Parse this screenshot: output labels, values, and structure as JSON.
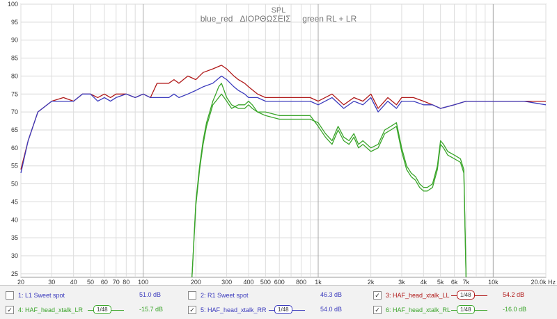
{
  "chart_data": {
    "type": "line",
    "title": "SPL",
    "subtitle": "blue_red   ΔΙΟΡΘΩΣΕΙΣ     green RL + LR",
    "x_scale": "log",
    "xlim": [
      20,
      20000
    ],
    "ylim": [
      24,
      100
    ],
    "y_ticks": [
      25,
      30,
      35,
      40,
      45,
      50,
      55,
      60,
      65,
      70,
      75,
      80,
      85,
      90,
      95,
      100
    ],
    "x_ticks": [
      {
        "v": 20,
        "label": "20"
      },
      {
        "v": 30,
        "label": "30"
      },
      {
        "v": 40,
        "label": "40"
      },
      {
        "v": 50,
        "label": "50"
      },
      {
        "v": 60,
        "label": "60"
      },
      {
        "v": 70,
        "label": "70"
      },
      {
        "v": 80,
        "label": "80"
      },
      {
        "v": 100,
        "label": "100"
      },
      {
        "v": 200,
        "label": "200"
      },
      {
        "v": 300,
        "label": "300"
      },
      {
        "v": 400,
        "label": "400"
      },
      {
        "v": 500,
        "label": "500"
      },
      {
        "v": 600,
        "label": "600"
      },
      {
        "v": 800,
        "label": "800"
      },
      {
        "v": 1000,
        "label": "1k"
      },
      {
        "v": 2000,
        "label": "2k"
      },
      {
        "v": 3000,
        "label": "3k"
      },
      {
        "v": 4000,
        "label": "4k"
      },
      {
        "v": 5000,
        "label": "5k"
      },
      {
        "v": 6000,
        "label": "6k"
      },
      {
        "v": 7000,
        "label": "7k"
      },
      {
        "v": 10000,
        "label": "10k"
      },
      {
        "v": 20000,
        "label": "20.0k Hz"
      }
    ],
    "grid": true,
    "series": [
      {
        "name": "4: HAF_head_xtalk_LR",
        "color": "#3aa52a",
        "points": [
          [
            190,
            24
          ],
          [
            200,
            45
          ],
          [
            210,
            55
          ],
          [
            220,
            62
          ],
          [
            230,
            67
          ],
          [
            240,
            70
          ],
          [
            250,
            73
          ],
          [
            260,
            75
          ],
          [
            270,
            77
          ],
          [
            280,
            78
          ],
          [
            290,
            76
          ],
          [
            300,
            74
          ],
          [
            320,
            72
          ],
          [
            350,
            71
          ],
          [
            380,
            71
          ],
          [
            400,
            72
          ],
          [
            420,
            71
          ],
          [
            450,
            70
          ],
          [
            500,
            69
          ],
          [
            600,
            68
          ],
          [
            700,
            68
          ],
          [
            800,
            68
          ],
          [
            900,
            68
          ],
          [
            1000,
            67
          ],
          [
            1100,
            64
          ],
          [
            1200,
            62
          ],
          [
            1300,
            66
          ],
          [
            1400,
            63
          ],
          [
            1500,
            62
          ],
          [
            1600,
            64
          ],
          [
            1700,
            61
          ],
          [
            1800,
            62
          ],
          [
            2000,
            60
          ],
          [
            2200,
            61
          ],
          [
            2400,
            65
          ],
          [
            2600,
            66
          ],
          [
            2800,
            67
          ],
          [
            3000,
            60
          ],
          [
            3200,
            55
          ],
          [
            3400,
            53
          ],
          [
            3600,
            52
          ],
          [
            3800,
            50
          ],
          [
            4000,
            49
          ],
          [
            4200,
            49
          ],
          [
            4500,
            50
          ],
          [
            4800,
            55
          ],
          [
            5000,
            62
          ],
          [
            5200,
            61
          ],
          [
            5500,
            59
          ],
          [
            6000,
            58
          ],
          [
            6500,
            57
          ],
          [
            6800,
            54
          ],
          [
            7000,
            24
          ]
        ]
      },
      {
        "name": "6: HAF_head_xtalk_RL",
        "color": "#3aa52a",
        "points": [
          [
            190,
            24
          ],
          [
            200,
            44
          ],
          [
            210,
            54
          ],
          [
            220,
            61
          ],
          [
            230,
            66
          ],
          [
            240,
            69
          ],
          [
            250,
            72
          ],
          [
            260,
            73
          ],
          [
            270,
            74
          ],
          [
            280,
            75
          ],
          [
            290,
            74
          ],
          [
            300,
            73
          ],
          [
            320,
            71
          ],
          [
            350,
            72
          ],
          [
            380,
            72
          ],
          [
            400,
            73
          ],
          [
            420,
            72
          ],
          [
            450,
            70
          ],
          [
            500,
            70
          ],
          [
            600,
            69
          ],
          [
            700,
            69
          ],
          [
            800,
            69
          ],
          [
            900,
            69
          ],
          [
            1000,
            66
          ],
          [
            1100,
            63
          ],
          [
            1200,
            61
          ],
          [
            1300,
            65
          ],
          [
            1400,
            62
          ],
          [
            1500,
            61
          ],
          [
            1600,
            63
          ],
          [
            1700,
            60
          ],
          [
            1800,
            61
          ],
          [
            2000,
            59
          ],
          [
            2200,
            60
          ],
          [
            2400,
            64
          ],
          [
            2600,
            65
          ],
          [
            2800,
            66
          ],
          [
            3000,
            59
          ],
          [
            3200,
            54
          ],
          [
            3400,
            52
          ],
          [
            3600,
            51
          ],
          [
            3800,
            49
          ],
          [
            4000,
            48
          ],
          [
            4200,
            48
          ],
          [
            4500,
            49
          ],
          [
            4800,
            54
          ],
          [
            5000,
            61
          ],
          [
            5200,
            60
          ],
          [
            5500,
            58
          ],
          [
            6000,
            57
          ],
          [
            6500,
            56
          ],
          [
            6800,
            53
          ],
          [
            7000,
            24
          ]
        ]
      },
      {
        "name": "3: HAF_head_xtalk_LL",
        "color": "#b01818",
        "points": [
          [
            20,
            54
          ],
          [
            22,
            62
          ],
          [
            25,
            70
          ],
          [
            30,
            73
          ],
          [
            35,
            74
          ],
          [
            40,
            73
          ],
          [
            45,
            75
          ],
          [
            50,
            75
          ],
          [
            55,
            74
          ],
          [
            60,
            75
          ],
          [
            65,
            74
          ],
          [
            70,
            75
          ],
          [
            80,
            75
          ],
          [
            90,
            74
          ],
          [
            100,
            75
          ],
          [
            110,
            74
          ],
          [
            120,
            78
          ],
          [
            140,
            78
          ],
          [
            150,
            79
          ],
          [
            160,
            78
          ],
          [
            180,
            80
          ],
          [
            200,
            79
          ],
          [
            220,
            81
          ],
          [
            250,
            82
          ],
          [
            280,
            83
          ],
          [
            300,
            82
          ],
          [
            330,
            80
          ],
          [
            350,
            79
          ],
          [
            380,
            78
          ],
          [
            400,
            77
          ],
          [
            450,
            75
          ],
          [
            500,
            74
          ],
          [
            600,
            74
          ],
          [
            700,
            74
          ],
          [
            800,
            74
          ],
          [
            900,
            74
          ],
          [
            1000,
            73
          ],
          [
            1200,
            75
          ],
          [
            1400,
            72
          ],
          [
            1600,
            74
          ],
          [
            1800,
            73
          ],
          [
            2000,
            75
          ],
          [
            2200,
            71
          ],
          [
            2500,
            74
          ],
          [
            2800,
            72
          ],
          [
            3000,
            74
          ],
          [
            3500,
            74
          ],
          [
            4000,
            73
          ],
          [
            4500,
            72
          ],
          [
            5000,
            71
          ],
          [
            6000,
            72
          ],
          [
            7000,
            73
          ],
          [
            10000,
            73
          ],
          [
            15000,
            73
          ],
          [
            20000,
            73
          ]
        ]
      },
      {
        "name": "5: HAF_head_xtalk_RR",
        "color": "#3b3bbd",
        "points": [
          [
            20,
            53
          ],
          [
            22,
            62
          ],
          [
            25,
            70
          ],
          [
            30,
            73
          ],
          [
            35,
            73
          ],
          [
            40,
            73
          ],
          [
            45,
            75
          ],
          [
            50,
            75
          ],
          [
            55,
            73
          ],
          [
            60,
            74
          ],
          [
            65,
            73
          ],
          [
            70,
            74
          ],
          [
            80,
            75
          ],
          [
            90,
            74
          ],
          [
            100,
            75
          ],
          [
            110,
            74
          ],
          [
            120,
            74
          ],
          [
            140,
            74
          ],
          [
            150,
            75
          ],
          [
            160,
            74
          ],
          [
            180,
            75
          ],
          [
            200,
            76
          ],
          [
            220,
            77
          ],
          [
            250,
            78
          ],
          [
            280,
            80
          ],
          [
            300,
            79
          ],
          [
            330,
            77
          ],
          [
            350,
            76
          ],
          [
            380,
            75
          ],
          [
            400,
            74
          ],
          [
            450,
            74
          ],
          [
            500,
            73
          ],
          [
            600,
            73
          ],
          [
            700,
            73
          ],
          [
            800,
            73
          ],
          [
            900,
            73
          ],
          [
            1000,
            72
          ],
          [
            1200,
            74
          ],
          [
            1400,
            71
          ],
          [
            1600,
            73
          ],
          [
            1800,
            72
          ],
          [
            2000,
            74
          ],
          [
            2200,
            70
          ],
          [
            2500,
            73
          ],
          [
            2800,
            71
          ],
          [
            3000,
            73
          ],
          [
            3500,
            73
          ],
          [
            4000,
            72
          ],
          [
            4500,
            72
          ],
          [
            5000,
            71
          ],
          [
            6000,
            72
          ],
          [
            7000,
            73
          ],
          [
            10000,
            73
          ],
          [
            15000,
            73
          ],
          [
            20000,
            72
          ]
        ]
      }
    ]
  },
  "legend": {
    "items": [
      {
        "checked": false,
        "label": "1: L1 Sweet spot",
        "value": "51.0 dB",
        "color": "#3b3bbd",
        "smooth": ""
      },
      {
        "checked": false,
        "label": "2: R1 Sweet spot",
        "value": "46.3 dB",
        "color": "#3b3bbd",
        "smooth": ""
      },
      {
        "checked": true,
        "label": "3: HAF_head_xtalk_LL",
        "value": "54.2 dB",
        "color": "#b01818",
        "smooth": "1/48"
      },
      {
        "checked": true,
        "label": "4: HAF_head_xtalk_LR",
        "value": "-15.7 dB",
        "color": "#3aa52a",
        "smooth": "1/48"
      },
      {
        "checked": true,
        "label": "5: HAF_head_xtalk_RR",
        "value": "54.0 dB",
        "color": "#3b3bbd",
        "smooth": "1/48"
      },
      {
        "checked": true,
        "label": "6: HAF_head_xtalk_RL",
        "value": "-16.0 dB",
        "color": "#3aa52a",
        "smooth": "1/48"
      }
    ]
  }
}
